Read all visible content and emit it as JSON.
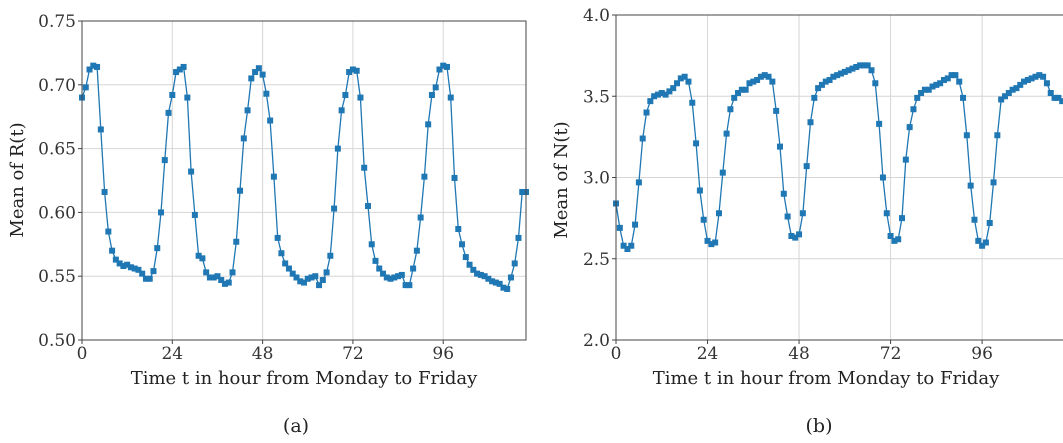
{
  "chart_data": [
    {
      "type": "line",
      "caption": "(a)",
      "xlabel": "Time t in hour from Monday to Friday",
      "ylabel": "Mean of R(t)",
      "xlim": [
        0,
        118
      ],
      "ylim": [
        0.5,
        0.75
      ],
      "xticks": [
        0,
        24,
        48,
        72,
        96
      ],
      "yticks": [
        0.5,
        0.55,
        0.6,
        0.65,
        0.7,
        0.75
      ],
      "ytick_labels": [
        "0.50",
        "0.55",
        "0.60",
        "0.65",
        "0.70",
        "0.75"
      ],
      "grid": true,
      "color": "#1f77b4",
      "marker": "square",
      "day_profile": [
        0.69,
        0.698,
        0.712,
        0.715,
        0.714,
        0.665,
        0.616,
        0.585,
        0.57,
        0.563,
        0.56,
        0.558,
        0.559,
        0.557,
        0.556,
        0.555,
        0.552,
        0.548,
        0.548,
        0.554,
        0.572,
        0.6,
        0.641,
        0.678
      ],
      "x": [
        0,
        1,
        2,
        3,
        4,
        5,
        6,
        7,
        8,
        9,
        10,
        11,
        12,
        13,
        14,
        15,
        16,
        17,
        18,
        19,
        20,
        21,
        22,
        23,
        24,
        25,
        26,
        27,
        28,
        29,
        30,
        31,
        32,
        33,
        34,
        35,
        36,
        37,
        38,
        39,
        40,
        41,
        42,
        43,
        44,
        45,
        46,
        47,
        48,
        49,
        50,
        51,
        52,
        53,
        54,
        55,
        56,
        57,
        58,
        59,
        60,
        61,
        62,
        63,
        64,
        65,
        66,
        67,
        68,
        69,
        70,
        71,
        72,
        73,
        74,
        75,
        76,
        77,
        78,
        79,
        80,
        81,
        82,
        83,
        84,
        85,
        86,
        87,
        88,
        89,
        90,
        91,
        92,
        93,
        94,
        95,
        96,
        97,
        98,
        99,
        100,
        101,
        102,
        103,
        104,
        105,
        106,
        107,
        108,
        109,
        110,
        111,
        112,
        113,
        114,
        115,
        116,
        117,
        118
      ],
      "y": [
        0.69,
        0.698,
        0.712,
        0.715,
        0.714,
        0.665,
        0.616,
        0.585,
        0.57,
        0.563,
        0.56,
        0.558,
        0.559,
        0.557,
        0.556,
        0.555,
        0.552,
        0.548,
        0.548,
        0.554,
        0.572,
        0.6,
        0.641,
        0.678,
        0.692,
        0.71,
        0.712,
        0.714,
        0.69,
        0.632,
        0.598,
        0.566,
        0.564,
        0.553,
        0.549,
        0.549,
        0.55,
        0.547,
        0.544,
        0.545,
        0.553,
        0.577,
        0.617,
        0.658,
        0.68,
        0.705,
        0.71,
        0.713,
        0.708,
        0.693,
        0.672,
        0.628,
        0.58,
        0.568,
        0.56,
        0.556,
        0.552,
        0.549,
        0.546,
        0.545,
        0.548,
        0.549,
        0.55,
        0.543,
        0.547,
        0.553,
        0.566,
        0.603,
        0.65,
        0.68,
        0.692,
        0.71,
        0.712,
        0.711,
        0.69,
        0.635,
        0.605,
        0.575,
        0.562,
        0.556,
        0.552,
        0.549,
        0.548,
        0.549,
        0.55,
        0.551,
        0.543,
        0.543,
        0.556,
        0.57,
        0.596,
        0.628,
        0.669,
        0.692,
        0.698,
        0.712,
        0.715,
        0.714,
        0.69,
        0.627,
        0.587,
        0.575,
        0.565,
        0.559,
        0.555,
        0.552,
        0.551,
        0.55,
        0.548,
        0.546,
        0.545,
        0.544,
        0.541,
        0.54,
        0.549,
        0.56,
        0.58,
        0.616,
        0.616
      ]
    },
    {
      "type": "line",
      "caption": "(b)",
      "xlabel": "Time t in hour from Monday to Friday",
      "ylabel": "Mean of N(t)",
      "xlim": [
        0,
        118
      ],
      "ylim": [
        2.0,
        4.0
      ],
      "xticks": [
        0,
        24,
        48,
        72,
        96
      ],
      "yticks": [
        2.0,
        2.5,
        3.0,
        3.5,
        4.0
      ],
      "ytick_labels": [
        "2.0",
        "2.5",
        "3.0",
        "3.5",
        "4.0"
      ],
      "grid": true,
      "color": "#1f77b4",
      "marker": "square",
      "x": [
        0,
        1,
        2,
        3,
        4,
        5,
        6,
        7,
        8,
        9,
        10,
        11,
        12,
        13,
        14,
        15,
        16,
        17,
        18,
        19,
        20,
        21,
        22,
        23,
        24,
        25,
        26,
        27,
        28,
        29,
        30,
        31,
        32,
        33,
        34,
        35,
        36,
        37,
        38,
        39,
        40,
        41,
        42,
        43,
        44,
        45,
        46,
        47,
        48,
        49,
        50,
        51,
        52,
        53,
        54,
        55,
        56,
        57,
        58,
        59,
        60,
        61,
        62,
        63,
        64,
        65,
        66,
        67,
        68,
        69,
        70,
        71,
        72,
        73,
        74,
        75,
        76,
        77,
        78,
        79,
        80,
        81,
        82,
        83,
        84,
        85,
        86,
        87,
        88,
        89,
        90,
        91,
        92,
        93,
        94,
        95,
        96,
        97,
        98,
        99,
        100,
        101,
        102,
        103,
        104,
        105,
        106,
        107,
        108,
        109,
        110,
        111,
        112,
        113,
        114,
        115,
        116,
        117,
        118
      ],
      "y": [
        2.84,
        2.69,
        2.58,
        2.56,
        2.58,
        2.71,
        2.97,
        3.24,
        3.4,
        3.47,
        3.5,
        3.51,
        3.52,
        3.51,
        3.53,
        3.55,
        3.58,
        3.61,
        3.62,
        3.59,
        3.46,
        3.21,
        2.92,
        2.74,
        2.61,
        2.59,
        2.6,
        2.78,
        3.03,
        3.27,
        3.42,
        3.49,
        3.52,
        3.54,
        3.54,
        3.58,
        3.59,
        3.6,
        3.62,
        3.63,
        3.62,
        3.59,
        3.41,
        3.19,
        2.9,
        2.76,
        2.64,
        2.63,
        2.65,
        2.78,
        3.07,
        3.34,
        3.49,
        3.55,
        3.57,
        3.59,
        3.6,
        3.62,
        3.63,
        3.64,
        3.65,
        3.66,
        3.67,
        3.68,
        3.69,
        3.69,
        3.69,
        3.66,
        3.58,
        3.33,
        3.0,
        2.78,
        2.64,
        2.61,
        2.62,
        2.75,
        3.11,
        3.31,
        3.42,
        3.49,
        3.52,
        3.54,
        3.54,
        3.56,
        3.57,
        3.58,
        3.6,
        3.61,
        3.63,
        3.63,
        3.59,
        3.49,
        3.26,
        2.95,
        2.74,
        2.61,
        2.58,
        2.6,
        2.72,
        2.97,
        3.26,
        3.48,
        3.5,
        3.52,
        3.54,
        3.55,
        3.57,
        3.59,
        3.6,
        3.61,
        3.62,
        3.63,
        3.62,
        3.58,
        3.52,
        3.49,
        3.49,
        3.47,
        3.46
      ]
    }
  ]
}
